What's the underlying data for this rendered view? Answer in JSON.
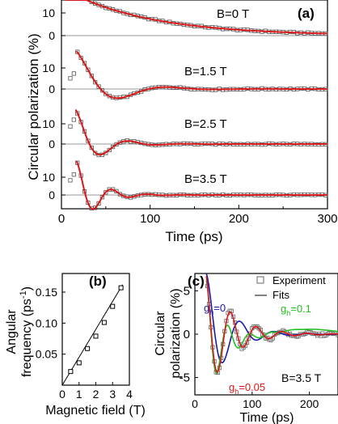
{
  "chart_data": [
    {
      "panel": "(a)",
      "type": "scatter",
      "xlabel": "Time (ps)",
      "ylabel": "Circular polarization (%)",
      "xlim": [
        0,
        300
      ],
      "xticks": [
        0,
        100,
        200,
        300
      ],
      "legend": {
        "experiment_marker": "open square",
        "fit": "red line"
      },
      "subpanels": [
        {
          "label": "B=0 T",
          "ylim": [
            -4,
            20
          ],
          "yticks": [
            0,
            10
          ],
          "fit_model": "exponential",
          "amp": 20,
          "tau": 95,
          "omega": 0,
          "t0": 5,
          "phase": 0,
          "marker_start": 10,
          "marker_end": 300,
          "marker_step": 4,
          "noise": 0.25
        },
        {
          "label": "B=1.5 T",
          "ylim": [
            -4,
            20
          ],
          "yticks": [
            0,
            10
          ],
          "fit_model": "damped_cosine",
          "amp": 18,
          "tau": 35,
          "omega": 0.058,
          "t0": 17,
          "phase": 0,
          "marker_start": 10,
          "marker_end": 300,
          "marker_step": 4,
          "noise": 0.25,
          "peak": 9
        },
        {
          "label": "B=2.5 T",
          "ylim": [
            -4,
            20
          ],
          "yticks": [
            0,
            10
          ],
          "fit_model": "damped_cosine",
          "amp": 17,
          "tau": 25,
          "omega": 0.101,
          "t0": 16,
          "phase": 0,
          "marker_start": 10,
          "marker_end": 300,
          "marker_step": 4,
          "noise": 0.25
        },
        {
          "label": "B=3.5 T",
          "ylim": [
            -5,
            20
          ],
          "yticks": [
            0,
            10
          ],
          "fit_model": "damped_cosine",
          "amp": 19,
          "tau": 22,
          "omega": 0.155,
          "t0": 17,
          "phase": 0,
          "marker_start": 10,
          "marker_end": 300,
          "marker_step": 4,
          "noise": 0.25,
          "peak": 14
        }
      ]
    },
    {
      "panel": "(b)",
      "type": "scatter",
      "xlabel": "Magnetic field (T)",
      "ylabel": "Angular frequency (ps⁻¹)",
      "ylabel_line1": "Angular",
      "ylabel_line2": "frequency (ps",
      "ylabel_sup": "-1",
      "ylabel_close": ")",
      "xlim": [
        0,
        4
      ],
      "ylim": [
        0,
        0.18
      ],
      "xticks": [
        0,
        1,
        2,
        3,
        4
      ],
      "yticks": [
        0.05,
        0.1,
        0.15
      ],
      "ytick_labels": [
        "0.05",
        "0.10",
        "0.15"
      ],
      "points": [
        [
          0.5,
          0.022
        ],
        [
          1.0,
          0.036
        ],
        [
          1.5,
          0.059
        ],
        [
          2.0,
          0.079
        ],
        [
          2.5,
          0.101
        ],
        [
          3.0,
          0.127
        ],
        [
          3.5,
          0.157
        ]
      ],
      "fit_line": [
        [
          0,
          0.0
        ],
        [
          3.6,
          0.162
        ]
      ]
    },
    {
      "panel": "(c)",
      "type": "line",
      "xlabel": "Time (ps)",
      "ylabel": "Circular polarization (%)",
      "ylabel_line1": "Circular",
      "ylabel_line2": "polarization (%)",
      "xlim": [
        0,
        250
      ],
      "ylim": [
        -7,
        7
      ],
      "xticks": [
        0,
        100,
        200
      ],
      "yticks": [
        -5,
        0,
        5
      ],
      "annotation": "B=3.5 T",
      "legend_position": "top-right",
      "legend": {
        "experiment": "Experiment",
        "fits": "Fits"
      },
      "series": [
        {
          "name": "Experiment",
          "marker": "open square",
          "color": "#666666",
          "model": "damped_cosine",
          "amp": 7,
          "tau": 45,
          "omega": 0.14,
          "t0": 20,
          "phase": 0.3,
          "marker_start": 22,
          "marker_end": 250,
          "marker_step": 3
        },
        {
          "name": "g_h=0",
          "label_main": "g",
          "label_sub": "h",
          "label_value": "=0",
          "color": "#1a1aa8",
          "model": "damped_cosine",
          "amp": 7,
          "tau": 38,
          "omega": 0.105,
          "t0": 20,
          "phase": 0
        },
        {
          "name": "g_h=0.1",
          "label_main": "g",
          "label_sub": "h",
          "label_value": "=0.1",
          "color": "#22c022",
          "model": "two_freq",
          "amp": 7,
          "tau": 28,
          "omega": 0.165,
          "t0": 20,
          "phase": 0,
          "amp2": 0.9,
          "tau2": 400,
          "omega2": 0.02,
          "phase2": 2.6
        },
        {
          "name": "g_h=0.05",
          "label_main": "g",
          "label_sub": "h",
          "label_value": "=0.05",
          "color": "#d81818",
          "model": "damped_cosine",
          "amp": 7,
          "tau": 42,
          "omega": 0.14,
          "t0": 20,
          "phase": 0.3
        }
      ]
    }
  ]
}
